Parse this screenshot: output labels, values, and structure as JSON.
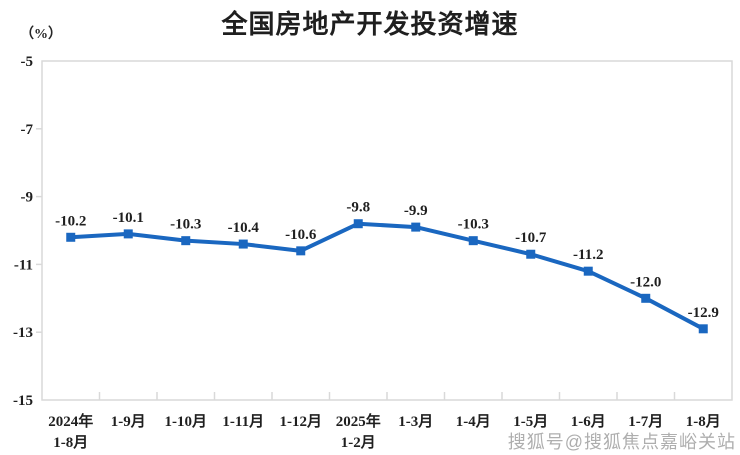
{
  "chart_data": {
    "type": "line",
    "title": "全国房地产开发投资增速",
    "unit_label": "（%）",
    "categories": [
      [
        "2024年",
        "1-8月"
      ],
      [
        "1-9月"
      ],
      [
        "1-10月"
      ],
      [
        "1-11月"
      ],
      [
        "1-12月"
      ],
      [
        "2025年",
        "1-2月"
      ],
      [
        "1-3月"
      ],
      [
        "1-4月"
      ],
      [
        "1-5月"
      ],
      [
        "1-6月"
      ],
      [
        "1-7月"
      ],
      [
        "1-8月"
      ]
    ],
    "values": [
      -10.2,
      -10.1,
      -10.3,
      -10.4,
      -10.6,
      -9.8,
      -9.9,
      -10.3,
      -10.7,
      -11.2,
      -12.0,
      -12.9
    ],
    "data_labels": [
      "-10.2",
      "-10.1",
      "-10.3",
      "-10.4",
      "-10.6",
      "-9.8",
      "-9.9",
      "-10.3",
      "-10.7",
      "-11.2",
      "-12.0",
      "-12.9"
    ],
    "y_ticks": [
      "-5",
      "-7",
      "-9",
      "-11",
      "-13",
      "-15"
    ],
    "y_tick_values": [
      -5,
      -7,
      -9,
      -11,
      -13,
      -15
    ],
    "ylim": [
      -15,
      -5
    ],
    "grid": false,
    "legend_position": "none",
    "line_color": "#1A67C0",
    "marker_shape": "square",
    "axis_color": "#D9D9D9",
    "text_color": "#1F1F1F"
  },
  "watermark": "搜狐号@搜狐焦点嘉峪关站"
}
